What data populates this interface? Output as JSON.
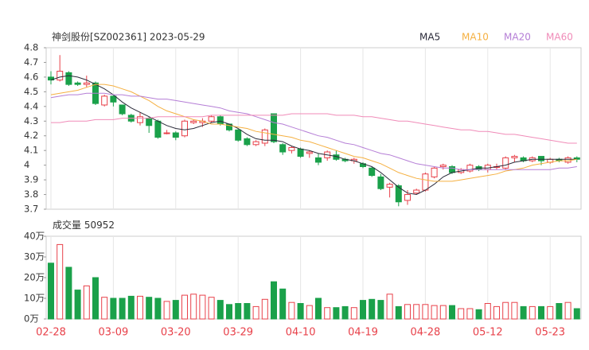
{
  "chart_data": [
    {
      "type": "candlestick",
      "title": "神剑股份[SZ002361] 2023-05-29",
      "ylim": [
        3.7,
        4.8
      ],
      "yticks": [
        3.7,
        3.8,
        3.9,
        4,
        4.1,
        4.2,
        4.3,
        4.4,
        4.5,
        4.6,
        4.7,
        4.8
      ],
      "up_color": "#e8414a",
      "down_color": "#1aa14a",
      "open": [
        4.6,
        4.58,
        4.63,
        4.56,
        4.55,
        4.56,
        4.41,
        4.47,
        4.41,
        4.34,
        4.29,
        4.32,
        4.3,
        4.22,
        4.22,
        4.2,
        4.29,
        4.29,
        4.3,
        4.33,
        4.28,
        4.24,
        4.18,
        4.14,
        4.15,
        4.35,
        4.14,
        4.1,
        4.11,
        4.08,
        4.05,
        4.05,
        4.07,
        4.04,
        4.03,
        4.01,
        3.98,
        3.92,
        3.85,
        3.86,
        3.76,
        3.81,
        3.83,
        3.92,
        3.99,
        3.99,
        3.95,
        3.96,
        3.99,
        3.97,
        3.99,
        3.98,
        4.05,
        4.05,
        4.03,
        4.06,
        4.02,
        4.04,
        4.02,
        4.05
      ],
      "high": [
        4.64,
        4.75,
        4.64,
        4.57,
        4.61,
        4.57,
        4.48,
        4.48,
        4.41,
        4.35,
        4.36,
        4.33,
        4.31,
        4.24,
        4.23,
        4.31,
        4.31,
        4.32,
        4.34,
        4.34,
        4.28,
        4.25,
        4.19,
        4.17,
        4.25,
        4.35,
        4.15,
        4.13,
        4.12,
        4.1,
        4.08,
        4.1,
        4.1,
        4.05,
        4.05,
        4.02,
        3.99,
        3.94,
        3.88,
        3.87,
        3.83,
        3.84,
        3.95,
        3.99,
        4.01,
        4.0,
        3.98,
        4.01,
        4.0,
        4.01,
        4.01,
        4.06,
        4.07,
        4.06,
        4.06,
        4.06,
        4.05,
        4.05,
        4.06,
        4.06
      ],
      "low": [
        4.55,
        4.57,
        4.54,
        4.54,
        4.53,
        4.41,
        4.4,
        4.4,
        4.34,
        4.29,
        4.27,
        4.22,
        4.18,
        4.21,
        4.17,
        4.19,
        4.28,
        4.26,
        4.29,
        4.27,
        4.23,
        4.16,
        4.13,
        4.13,
        4.13,
        4.15,
        4.07,
        4.08,
        4.05,
        4.05,
        4.0,
        4.03,
        4.03,
        4.02,
        4.01,
        3.98,
        3.92,
        3.83,
        3.78,
        3.72,
        3.73,
        3.8,
        3.82,
        3.91,
        3.97,
        3.94,
        3.94,
        3.95,
        3.96,
        3.95,
        3.97,
        3.97,
        4.02,
        4.02,
        4.02,
        4.0,
        4.01,
        4.02,
        4.01,
        4.02
      ],
      "close": [
        4.58,
        4.64,
        4.55,
        4.55,
        4.56,
        4.42,
        4.47,
        4.43,
        4.35,
        4.3,
        4.33,
        4.27,
        4.19,
        4.22,
        4.19,
        4.3,
        4.3,
        4.3,
        4.33,
        4.28,
        4.24,
        4.17,
        4.14,
        4.16,
        4.24,
        4.16,
        4.09,
        4.12,
        4.06,
        4.09,
        4.02,
        4.09,
        4.04,
        4.03,
        4.04,
        3.99,
        3.93,
        3.84,
        3.87,
        3.75,
        3.8,
        3.83,
        3.94,
        3.98,
        4.0,
        3.95,
        3.97,
        4.0,
        3.97,
        4.0,
        3.99,
        4.05,
        4.06,
        4.03,
        4.05,
        4.03,
        4.04,
        4.03,
        4.05,
        4.04
      ],
      "series": [
        {
          "name": "MA5",
          "color": "#2b2b3a",
          "values": [
            4.58,
            4.6,
            4.61,
            4.6,
            4.58,
            4.55,
            4.52,
            4.48,
            4.43,
            4.39,
            4.36,
            4.33,
            4.3,
            4.27,
            4.25,
            4.24,
            4.25,
            4.27,
            4.29,
            4.3,
            4.28,
            4.25,
            4.21,
            4.18,
            4.17,
            4.17,
            4.16,
            4.13,
            4.11,
            4.1,
            4.08,
            4.07,
            4.06,
            4.04,
            4.03,
            4.01,
            3.99,
            3.95,
            3.9,
            3.85,
            3.81,
            3.8,
            3.83,
            3.87,
            3.92,
            3.95,
            3.96,
            3.97,
            3.98,
            3.98,
            3.99,
            4.0,
            4.02,
            4.03,
            4.04,
            4.04,
            4.04,
            4.04,
            4.04,
            4.04
          ]
        },
        {
          "name": "MA10",
          "color": "#f5b041",
          "values": [
            4.48,
            4.49,
            4.5,
            4.51,
            4.53,
            4.55,
            4.55,
            4.54,
            4.52,
            4.5,
            4.47,
            4.44,
            4.4,
            4.37,
            4.35,
            4.33,
            4.31,
            4.3,
            4.28,
            4.28,
            4.27,
            4.26,
            4.25,
            4.23,
            4.22,
            4.21,
            4.2,
            4.19,
            4.17,
            4.16,
            4.14,
            4.12,
            4.1,
            4.08,
            4.06,
            4.05,
            4.03,
            4.01,
            3.98,
            3.95,
            3.93,
            3.91,
            3.9,
            3.89,
            3.89,
            3.89,
            3.9,
            3.91,
            3.92,
            3.93,
            3.94,
            3.96,
            3.97,
            3.98,
            4.0,
            4.01,
            4.02,
            4.03,
            4.03,
            4.04
          ]
        },
        {
          "name": "MA20",
          "color": "#b57ed6",
          "values": [
            4.46,
            4.47,
            4.48,
            4.48,
            4.49,
            4.49,
            4.49,
            4.48,
            4.48,
            4.47,
            4.47,
            4.46,
            4.45,
            4.45,
            4.44,
            4.43,
            4.42,
            4.41,
            4.4,
            4.39,
            4.37,
            4.36,
            4.35,
            4.33,
            4.31,
            4.29,
            4.28,
            4.26,
            4.24,
            4.22,
            4.2,
            4.19,
            4.17,
            4.15,
            4.14,
            4.12,
            4.1,
            4.08,
            4.07,
            4.05,
            4.03,
            4.01,
            4.0,
            3.99,
            3.98,
            3.98,
            3.97,
            3.97,
            3.97,
            3.97,
            3.97,
            3.97,
            3.97,
            3.97,
            3.97,
            3.97,
            3.97,
            3.98,
            3.98,
            3.99
          ]
        },
        {
          "name": "MA60",
          "color": "#f08bb8",
          "values": [
            4.29,
            4.29,
            4.3,
            4.3,
            4.3,
            4.31,
            4.31,
            4.31,
            4.32,
            4.32,
            4.32,
            4.32,
            4.33,
            4.33,
            4.33,
            4.33,
            4.33,
            4.33,
            4.34,
            4.34,
            4.34,
            4.34,
            4.34,
            4.34,
            4.34,
            4.34,
            4.34,
            4.35,
            4.35,
            4.35,
            4.35,
            4.35,
            4.34,
            4.34,
            4.34,
            4.33,
            4.33,
            4.32,
            4.31,
            4.3,
            4.3,
            4.29,
            4.28,
            4.27,
            4.26,
            4.25,
            4.24,
            4.24,
            4.23,
            4.23,
            4.22,
            4.21,
            4.21,
            4.2,
            4.19,
            4.18,
            4.17,
            4.16,
            4.15,
            4.15
          ]
        }
      ]
    },
    {
      "type": "volume",
      "title": "成交量",
      "latest": 50952,
      "categories": [
        "02-28",
        null,
        null,
        null,
        null,
        null,
        null,
        "03-09",
        null,
        null,
        null,
        null,
        null,
        null,
        "03-20",
        null,
        null,
        null,
        null,
        null,
        null,
        "03-29",
        null,
        null,
        null,
        null,
        null,
        null,
        "04-10",
        null,
        null,
        null,
        null,
        null,
        null,
        "04-19",
        null,
        null,
        null,
        null,
        null,
        null,
        "04-28",
        null,
        null,
        null,
        null,
        null,
        null,
        "05-12",
        null,
        null,
        null,
        null,
        null,
        null,
        "05-23",
        null,
        null,
        null
      ],
      "values": [
        27,
        36,
        25,
        14,
        16,
        20,
        10.5,
        10,
        10,
        11,
        11,
        10.5,
        10,
        8.5,
        9,
        11.5,
        12,
        11.5,
        10.5,
        9,
        7,
        7.5,
        7.5,
        6,
        9.5,
        18,
        14.5,
        8,
        7.5,
        6.5,
        10,
        5.5,
        5.5,
        6,
        5.5,
        9,
        9.5,
        9,
        12,
        6,
        7,
        7,
        7,
        6.5,
        6.5,
        6.5,
        5,
        5,
        4.5,
        7.5,
        6,
        8,
        8,
        6,
        6,
        6,
        6,
        7.5,
        8,
        5
      ],
      "ylim": [
        0,
        40
      ],
      "yticks": [
        {
          "value": 0,
          "label": "0万"
        },
        {
          "value": 10,
          "label": "10万"
        },
        {
          "value": 20,
          "label": "20万"
        },
        {
          "value": 30,
          "label": "30万"
        },
        {
          "value": 40,
          "label": "40万"
        }
      ]
    }
  ]
}
